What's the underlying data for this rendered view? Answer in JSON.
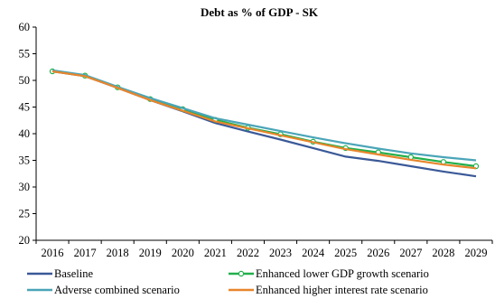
{
  "chart_data": {
    "type": "line",
    "title": "Debt as % of GDP - SK",
    "xlabel": "",
    "ylabel": "",
    "x": [
      "2016",
      "2017",
      "2018",
      "2019",
      "2020",
      "2021",
      "2022",
      "2023",
      "2024",
      "2025",
      "2026",
      "2027",
      "2028",
      "2029"
    ],
    "ylim": [
      20,
      60
    ],
    "yticks": [
      20,
      25,
      30,
      35,
      40,
      45,
      50,
      55,
      60
    ],
    "grid": false,
    "legend_position": "bottom",
    "series": [
      {
        "name": "Baseline",
        "color": "#3b5998",
        "marker": "none",
        "values": [
          51.7,
          50.8,
          48.6,
          46.3,
          44.2,
          42.0,
          40.4,
          38.9,
          37.3,
          35.7,
          34.9,
          33.9,
          32.9,
          32.0
        ]
      },
      {
        "name": "Enhanced lower GDP growth scenario",
        "color": "#22b04b",
        "marker": "circle",
        "values": [
          51.7,
          50.9,
          48.7,
          46.5,
          44.6,
          42.6,
          41.1,
          39.9,
          38.5,
          37.3,
          36.5,
          35.6,
          34.7,
          33.9
        ]
      },
      {
        "name": "Adverse combined scenario",
        "color": "#4aa5b8",
        "marker": "none",
        "values": [
          51.9,
          51.0,
          48.8,
          46.7,
          44.8,
          42.9,
          41.7,
          40.5,
          39.3,
          38.2,
          37.2,
          36.3,
          35.6,
          35.0
        ]
      },
      {
        "name": "Enhanced higher interest rate scenario",
        "color": "#e8852c",
        "marker": "none",
        "values": [
          51.7,
          50.8,
          48.6,
          46.3,
          44.3,
          42.3,
          41.0,
          39.7,
          38.4,
          37.1,
          36.1,
          35.1,
          34.2,
          33.5
        ]
      }
    ]
  }
}
